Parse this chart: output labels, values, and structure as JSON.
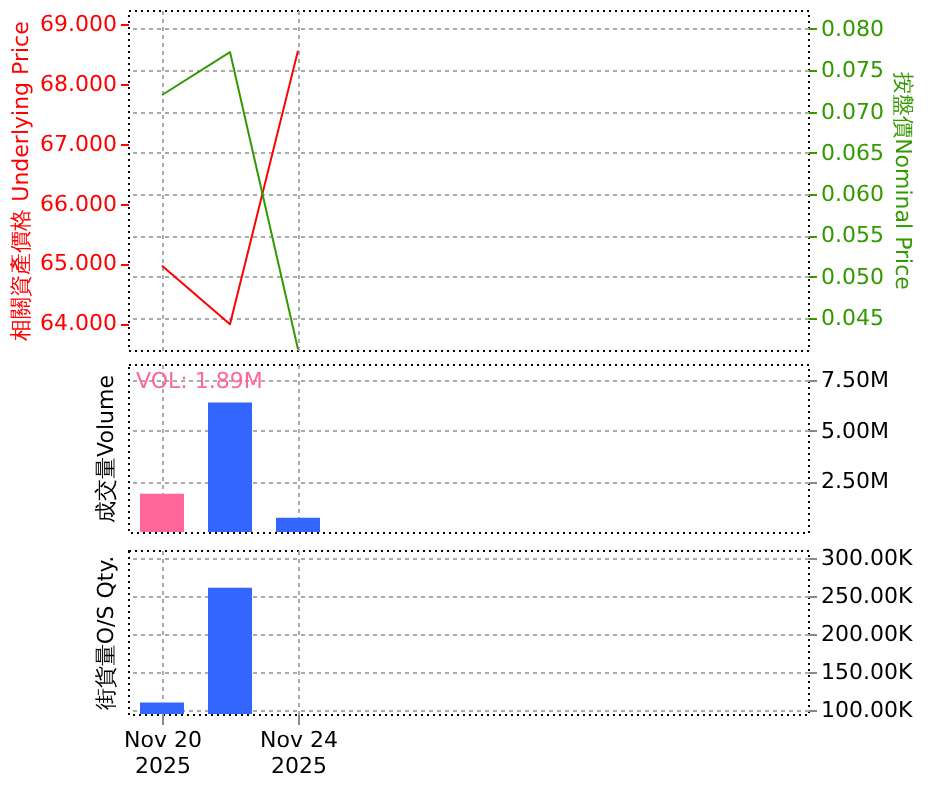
{
  "chart_data": [
    {
      "type": "line",
      "categories": [
        null,
        null,
        null,
        null,
        null,
        null,
        null,
        null,
        null,
        null
      ],
      "ylabel": "相關資產價格 Underlying Price",
      "y2label": "按盤價Nominal Price",
      "ylim": [
        63.55,
        69.24
      ],
      "yticks": [
        {
          "value": 64,
          "label": "64.000"
        },
        {
          "value": 65,
          "label": "65.000"
        },
        {
          "value": 66,
          "label": "66.000"
        },
        {
          "value": 67,
          "label": "67.000"
        },
        {
          "value": 68,
          "label": "68.000"
        },
        {
          "value": 69,
          "label": "69.000"
        }
      ],
      "y2lim": [
        0.0411,
        0.0823
      ],
      "y2ticks": [
        {
          "value": 0.045,
          "label": "0.045"
        },
        {
          "value": 0.05,
          "label": "0.050"
        },
        {
          "value": 0.055,
          "label": "0.055"
        },
        {
          "value": 0.06,
          "label": "0.060"
        },
        {
          "value": 0.065,
          "label": "0.065"
        },
        {
          "value": 0.07,
          "label": "0.070"
        },
        {
          "value": 0.075,
          "label": "0.075"
        },
        {
          "value": 0.08,
          "label": "0.080"
        }
      ],
      "series": [
        {
          "color": "#ff0000",
          "values": [
            64.96,
            63.98,
            68.56,
            null,
            null,
            null,
            null,
            null,
            null,
            null
          ]
        },
        {
          "color": "#339900",
          "axis": "y2",
          "values": [
            0.072,
            0.0772,
            0.0412,
            null,
            null,
            null,
            null,
            null,
            null,
            null
          ]
        }
      ],
      "grid": true,
      "tick_labels": "y"
    },
    {
      "type": "bar",
      "categories": [
        null,
        null,
        null,
        null,
        null,
        null,
        null,
        null,
        null,
        null
      ],
      "ylabel": "成交量Volume",
      "ylim": [
        0,
        8.3
      ],
      "yticks": [
        {
          "value": 2.5,
          "label": "2.50M"
        },
        {
          "value": 5,
          "label": "5.00M"
        },
        {
          "value": 7.5,
          "label": "7.50M"
        }
      ],
      "values": [
        1.89,
        6.4,
        0.7,
        null,
        null,
        null,
        null,
        null,
        null,
        null
      ],
      "colors": [
        "#ff6699",
        "#3366ff",
        "#3366ff",
        "#3366ff",
        "#3366ff",
        "#3366ff",
        "#3366ff",
        "#3366ff",
        "#3366ff",
        "#3366ff"
      ],
      "annotations": [
        "VOL: 1.89M"
      ],
      "grid": true,
      "tick_labels": "y"
    },
    {
      "type": "bar",
      "categories": [
        "Nov 20 2025",
        null,
        "Nov 24 2025",
        null,
        null,
        null,
        null,
        null,
        null,
        null
      ],
      "ylabel": "街貨量O/S Qty.",
      "ylim": [
        95,
        310.7
      ],
      "yticks": [
        {
          "value": 100,
          "label": "100.00K"
        },
        {
          "value": 150,
          "label": "150.00K"
        },
        {
          "value": 200,
          "label": "200.00K"
        },
        {
          "value": 250,
          "label": "250.00K"
        },
        {
          "value": 300,
          "label": "300.00K"
        }
      ],
      "values": [
        110,
        261,
        null,
        null,
        null,
        null,
        null,
        null,
        null,
        null
      ],
      "colors": [
        "#3366ff",
        "#3366ff",
        "#3366ff",
        "#3366ff",
        "#3366ff",
        "#3366ff",
        "#3366ff",
        "#3366ff",
        "#3366ff",
        "#3366ff"
      ],
      "grid": true
    }
  ]
}
